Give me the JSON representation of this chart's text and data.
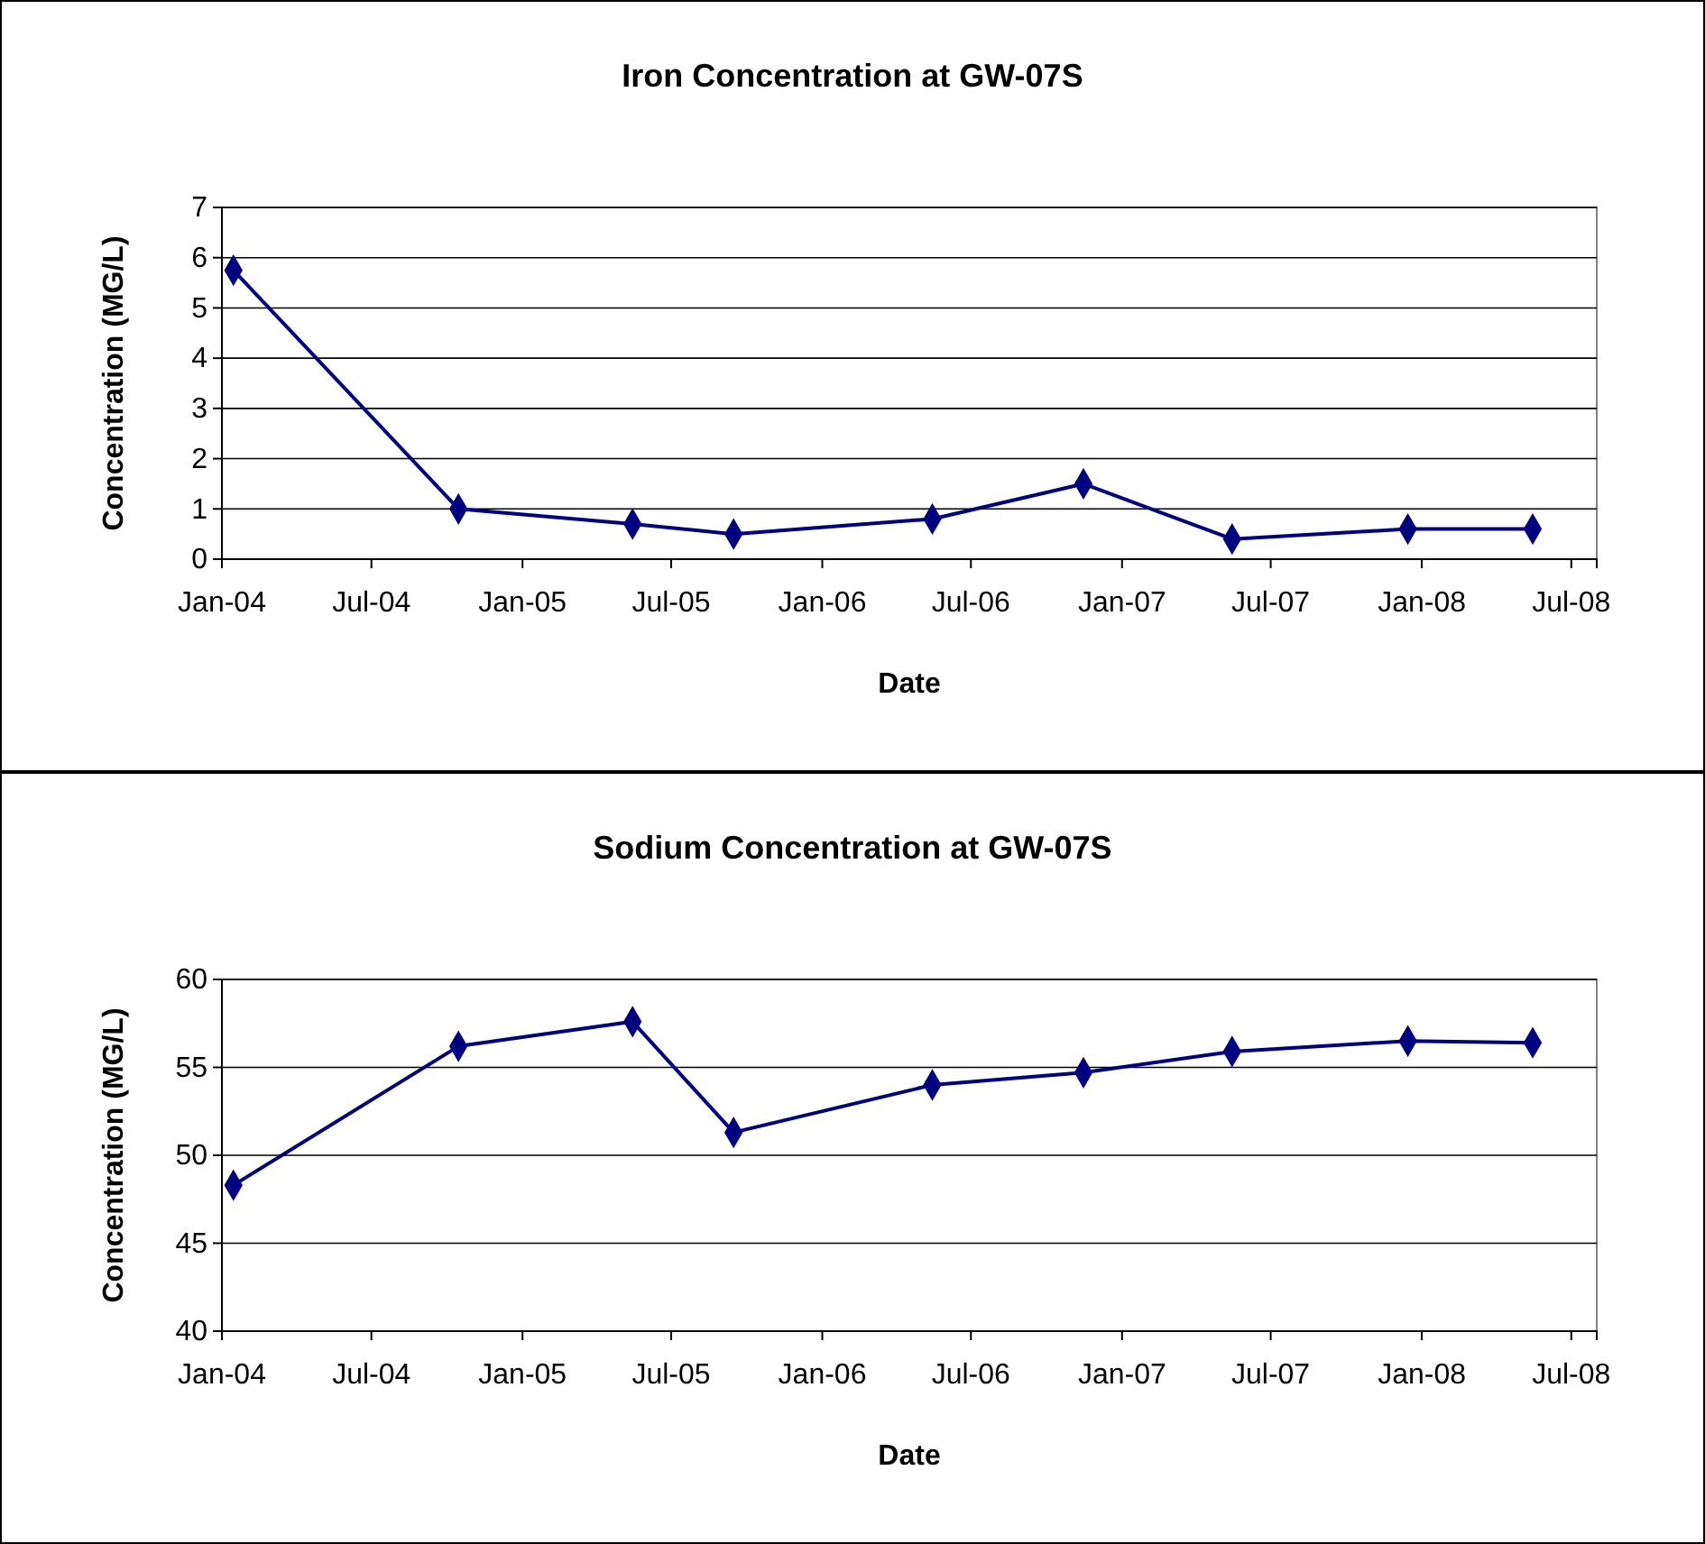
{
  "chart_data": [
    {
      "type": "line",
      "title": "Iron Concentration at GW-07S",
      "xlabel": "Date",
      "ylabel": "Concentration (MG/L)",
      "x": [
        "2004-01-15",
        "2004-10-15",
        "2005-05-15",
        "2005-09-15",
        "2006-05-15",
        "2006-11-15",
        "2007-05-15",
        "2007-12-15",
        "2008-05-15"
      ],
      "series": [
        {
          "color": "#000080",
          "values": [
            5.75,
            1.0,
            0.7,
            0.5,
            0.8,
            1.5,
            0.4,
            0.6,
            0.6
          ]
        }
      ],
      "xlim": [
        "2004-01",
        "2008-08"
      ],
      "xticks": [
        {
          "value": "2004-01",
          "label": "Jan-04"
        },
        {
          "value": "2004-07",
          "label": "Jul-04"
        },
        {
          "value": "2005-01",
          "label": "Jan-05"
        },
        {
          "value": "2005-07",
          "label": "Jul-05"
        },
        {
          "value": "2006-01",
          "label": "Jan-06"
        },
        {
          "value": "2006-07",
          "label": "Jul-06"
        },
        {
          "value": "2007-01",
          "label": "Jan-07"
        },
        {
          "value": "2007-07",
          "label": "Jul-07"
        },
        {
          "value": "2008-01",
          "label": "Jan-08"
        },
        {
          "value": "2008-07",
          "label": "Jul-08"
        }
      ],
      "ylim": [
        0,
        7
      ],
      "yticks": [
        0,
        1,
        2,
        3,
        4,
        5,
        6,
        7
      ],
      "grid": "y",
      "legend": false,
      "marker": "diamond",
      "line_style": "solid"
    },
    {
      "type": "line",
      "title": "Sodium Concentration at GW-07S",
      "xlabel": "Date",
      "ylabel": "Concentration (MG/L)",
      "x": [
        "2004-01-15",
        "2004-10-15",
        "2005-05-15",
        "2005-09-15",
        "2006-05-15",
        "2006-11-15",
        "2007-05-15",
        "2007-12-15",
        "2008-05-15"
      ],
      "series": [
        {
          "color": "#000080",
          "values": [
            48.3,
            56.2,
            57.6,
            51.3,
            54.0,
            54.7,
            55.9,
            56.5,
            56.4
          ]
        }
      ],
      "xlim": [
        "2004-01",
        "2008-08"
      ],
      "xticks": [
        {
          "value": "2004-01",
          "label": "Jan-04"
        },
        {
          "value": "2004-07",
          "label": "Jul-04"
        },
        {
          "value": "2005-01",
          "label": "Jan-05"
        },
        {
          "value": "2005-07",
          "label": "Jul-05"
        },
        {
          "value": "2006-01",
          "label": "Jan-06"
        },
        {
          "value": "2006-07",
          "label": "Jul-06"
        },
        {
          "value": "2007-01",
          "label": "Jan-07"
        },
        {
          "value": "2007-07",
          "label": "Jul-07"
        },
        {
          "value": "2008-01",
          "label": "Jan-08"
        },
        {
          "value": "2008-07",
          "label": "Jul-08"
        }
      ],
      "ylim": [
        40,
        60
      ],
      "yticks": [
        40,
        45,
        50,
        55,
        60
      ],
      "grid": "y",
      "legend": false,
      "marker": "diamond",
      "line_style": "solid"
    }
  ]
}
